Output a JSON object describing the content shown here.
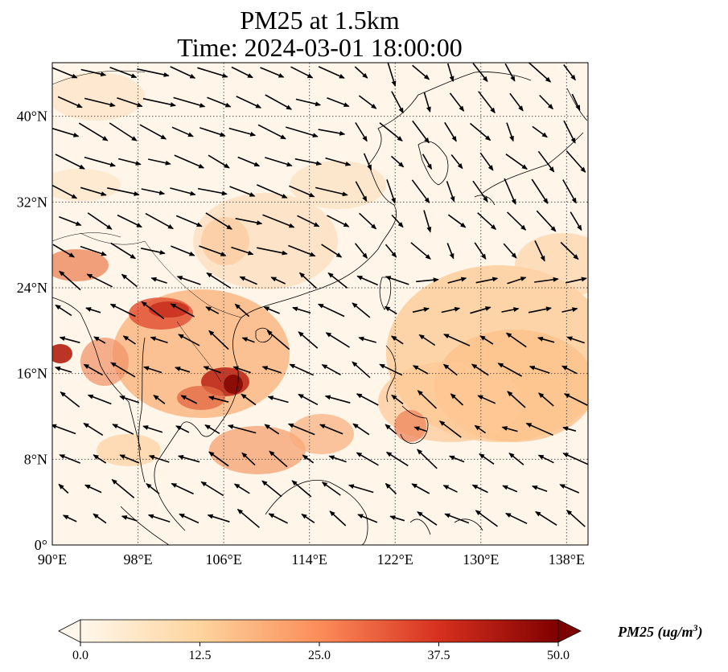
{
  "title": {
    "line1": "PM25 at 1.5km",
    "line2": "Time: 2024-03-01 18:00:00"
  },
  "map": {
    "projection": "PlateCarree",
    "lon_range": [
      90,
      140
    ],
    "lat_range": [
      0,
      45
    ],
    "lon_ticks": [
      {
        "value": 90,
        "label": "90°E"
      },
      {
        "value": 98,
        "label": "98°E"
      },
      {
        "value": 106,
        "label": "106°E"
      },
      {
        "value": 114,
        "label": "114°E"
      },
      {
        "value": 122,
        "label": "122°E"
      },
      {
        "value": 130,
        "label": "130°E"
      },
      {
        "value": 138,
        "label": "138°E"
      }
    ],
    "lat_ticks": [
      {
        "value": 0,
        "label": "0°"
      },
      {
        "value": 8,
        "label": "8°N"
      },
      {
        "value": 16,
        "label": "16°N"
      },
      {
        "value": 24,
        "label": "24°N"
      },
      {
        "value": 32,
        "label": "32°N"
      },
      {
        "value": 40,
        "label": "40°N"
      }
    ],
    "gridlines": true,
    "wind_vectors": true
  },
  "colorbar": {
    "cmap": "OrRd",
    "min": 0.0,
    "max": 50.0,
    "extend": "both",
    "ticks": [
      "0.0",
      "12.5",
      "25.0",
      "37.5",
      "50.0"
    ],
    "label_main": "PM25 (ug/m",
    "label_sup": "3",
    "label_end": ")"
  },
  "colors": {
    "low": "#fff7ec",
    "mid": "#fdbb84",
    "high": "#d7301f",
    "max": "#7f0000"
  }
}
